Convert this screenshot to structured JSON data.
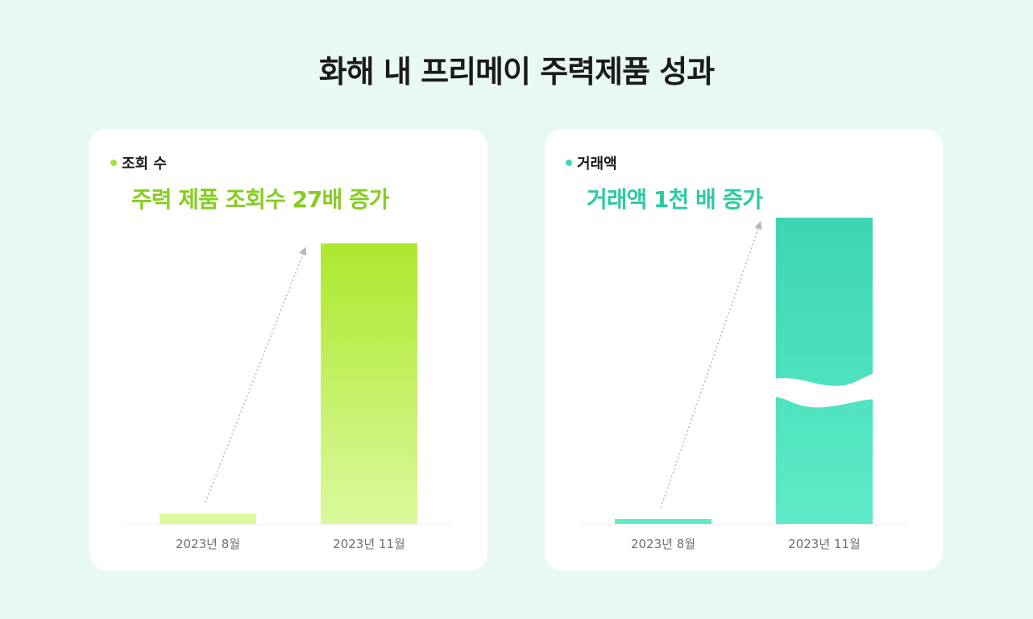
{
  "page": {
    "title": "화해 내 프리메이 주력제품 성과"
  },
  "colors": {
    "views_accent": "#88cc22",
    "views_dot": "#a6e23a",
    "views_bar_top": "#ade82e",
    "views_bar_bottom": "#daf99c",
    "volume_accent": "#2ec9a4",
    "volume_dot": "#3fd7b2",
    "volume_bar_top": "#3cd6b3",
    "volume_bar_bottom": "#5eebc8"
  },
  "cards": [
    {
      "label": "조회 수",
      "headline": "주력 제품 조회수 27배 증가"
    },
    {
      "label": "거래액",
      "headline": "거래액 1천 배 증가"
    }
  ],
  "chart_data": [
    {
      "type": "bar",
      "title": "조회 수",
      "categories": [
        "2023년 8월",
        "2023년 11월"
      ],
      "values": [
        1,
        27
      ],
      "ylim": [
        0,
        27
      ],
      "grid": false,
      "legend": "none",
      "annotation": "주력 제품 조회수 27배 증가"
    },
    {
      "type": "bar",
      "title": "거래액",
      "categories": [
        "2023년 8월",
        "2023년 11월"
      ],
      "values": [
        1,
        1000
      ],
      "ylim": [
        0,
        1000
      ],
      "axis_break": true,
      "grid": false,
      "legend": "none",
      "annotation": "거래액 1천 배 증가"
    }
  ]
}
